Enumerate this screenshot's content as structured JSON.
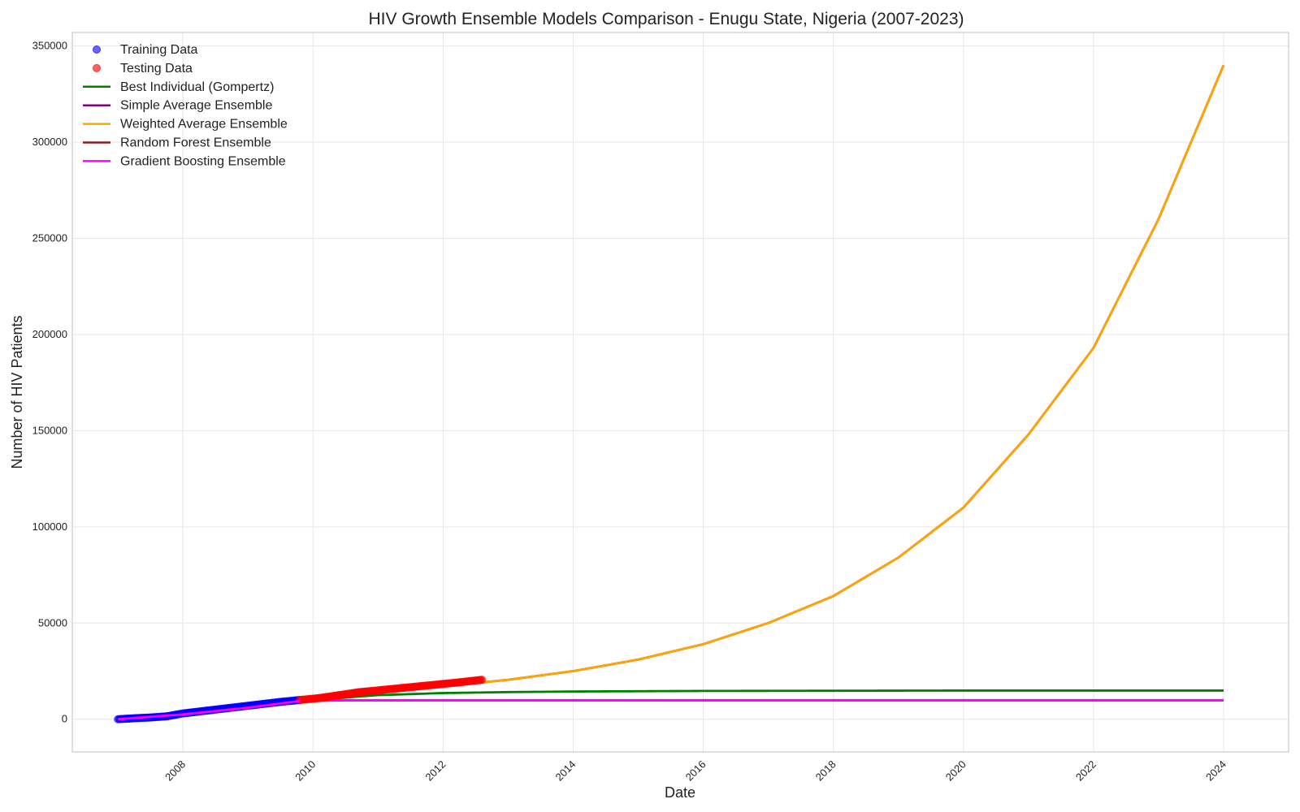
{
  "chart_data": {
    "type": "line",
    "title": "HIV Growth Ensemble Models Comparison - Enugu State, Nigeria (2007-2023)",
    "xlabel": "Date",
    "ylabel": "Number of HIV Patients",
    "xlim": [
      2006.3,
      2025.0
    ],
    "ylim": [
      -17000,
      357000
    ],
    "x_ticks": [
      "2008",
      "2010",
      "2012",
      "2014",
      "2016",
      "2018",
      "2020",
      "2022",
      "2024"
    ],
    "y_ticks": [
      "0",
      "50000",
      "100000",
      "150000",
      "200000",
      "250000",
      "300000",
      "350000"
    ],
    "grid": true,
    "legend_position": "upper-left",
    "legend": [
      {
        "label": "Training Data",
        "kind": "marker",
        "color": "#0000ff"
      },
      {
        "label": "Testing Data",
        "kind": "marker",
        "color": "#ff0000"
      },
      {
        "label": "Best Individual (Gompertz)",
        "kind": "line",
        "color": "#008000"
      },
      {
        "label": "Simple Average Ensemble",
        "kind": "line",
        "color": "#800080"
      },
      {
        "label": "Weighted Average Ensemble",
        "kind": "line",
        "color": "#ffa500"
      },
      {
        "label": "Random Forest Ensemble",
        "kind": "line",
        "color": "#8b1a1a"
      },
      {
        "label": "Gradient Boosting Ensemble",
        "kind": "line",
        "color": "#ff00ff"
      }
    ],
    "series": [
      {
        "name": "Training Data",
        "kind": "scatter",
        "color": "#0000ff",
        "x": [
          2007.0,
          2007.25,
          2007.5,
          2007.75,
          2008.0,
          2008.25,
          2008.5,
          2008.75,
          2009.0,
          2009.25,
          2009.5,
          2009.8
        ],
        "y": [
          0,
          500,
          900,
          1500,
          3000,
          4000,
          5000,
          6000,
          7000,
          8000,
          9000,
          10000
        ]
      },
      {
        "name": "Testing Data",
        "kind": "scatter",
        "color": "#ff0000",
        "x": [
          2009.8,
          2010.1,
          2010.4,
          2010.7,
          2011.0,
          2011.3,
          2011.6,
          2011.9,
          2012.2,
          2012.6
        ],
        "y": [
          10000,
          11000,
          12500,
          14000,
          15000,
          16000,
          17000,
          18000,
          19000,
          20500
        ]
      },
      {
        "name": "Best Individual (Gompertz)",
        "kind": "line",
        "color": "#008000",
        "x": [
          2007,
          2008,
          2009,
          2010,
          2011,
          2012,
          2013,
          2014,
          2016,
          2018,
          2020,
          2022,
          2024
        ],
        "y": [
          0,
          2000,
          6000,
          10000,
          12500,
          13600,
          14100,
          14400,
          14700,
          14800,
          14900,
          14900,
          14900
        ]
      },
      {
        "name": "Simple Average Ensemble",
        "kind": "line",
        "color": "#800080",
        "x": [
          2007,
          2008,
          2009,
          2010,
          2011,
          2012,
          2013,
          2014,
          2015,
          2016,
          2017,
          2018,
          2019,
          2020,
          2021,
          2022,
          2023,
          2024
        ],
        "y": [
          0,
          2500,
          6000,
          10000,
          14000,
          17000,
          20500,
          25000,
          31000,
          39000,
          50000,
          64000,
          84000,
          110000,
          148000,
          193000,
          260000,
          340000
        ]
      },
      {
        "name": "Weighted Average Ensemble",
        "kind": "line",
        "color": "#ffa500",
        "x": [
          2007,
          2008,
          2009,
          2010,
          2011,
          2012,
          2013,
          2014,
          2015,
          2016,
          2017,
          2018,
          2019,
          2020,
          2021,
          2022,
          2023,
          2024
        ],
        "y": [
          0,
          2500,
          6000,
          10000,
          14000,
          17000,
          20500,
          25000,
          31000,
          39000,
          50000,
          64000,
          84000,
          110000,
          148000,
          193000,
          260000,
          340000
        ]
      },
      {
        "name": "Random Forest Ensemble",
        "kind": "line",
        "color": "#8b1a1a",
        "x": [
          2007,
          2008,
          2009,
          2009.8,
          2010.5,
          2024
        ],
        "y": [
          0,
          2500,
          6000,
          9500,
          9800,
          9800
        ]
      },
      {
        "name": "Gradient Boosting Ensemble",
        "kind": "line",
        "color": "#ff00ff",
        "x": [
          2007,
          2008,
          2009,
          2009.8,
          2010.5,
          2024
        ],
        "y": [
          0,
          2500,
          6000,
          9500,
          9900,
          9900
        ]
      }
    ]
  }
}
